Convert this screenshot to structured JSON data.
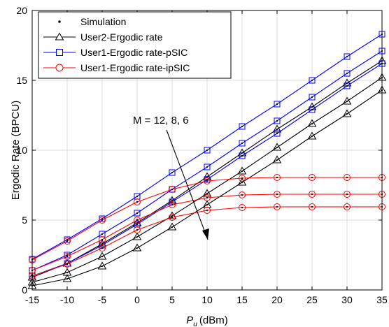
{
  "chart_data": {
    "type": "line",
    "xlabel": "P",
    "xlabel_sub": "u",
    "xlabel_unit": "(dBm)",
    "ylabel": "Ergodic Rate (BPCU)",
    "xlim": [
      -15,
      35
    ],
    "ylim": [
      0,
      20
    ],
    "x_ticks": [
      -15,
      -10,
      -5,
      0,
      5,
      10,
      15,
      20,
      25,
      30,
      35
    ],
    "y_ticks": [
      0,
      5,
      10,
      15,
      20
    ],
    "grid": true,
    "legend_position": "top-left",
    "legend": [
      {
        "label": "Simulation",
        "marker": "dot",
        "color": "#000000"
      },
      {
        "label": "User2-Ergodic rate",
        "marker": "triangle",
        "color": "#000000"
      },
      {
        "label": "User1-Ergodic rate-pSIC",
        "marker": "square",
        "color": "#0000ff"
      },
      {
        "label": "User1-Ergodic rate-ipSIC",
        "marker": "circle",
        "color": "#ff0000"
      }
    ],
    "annotation": "M = 12, 8, 6",
    "x": [
      -15,
      -10,
      -5,
      0,
      5,
      10,
      15,
      20,
      25,
      30,
      35
    ],
    "series": [
      {
        "group": "User2-Ergodic rate",
        "M": 12,
        "marker": "triangle",
        "color": "#000000",
        "values": [
          0.9,
          1.9,
          3.3,
          4.8,
          6.4,
          8.1,
          9.8,
          11.5,
          13.1,
          14.8,
          16.4
        ]
      },
      {
        "group": "User2-Ergodic rate",
        "M": 8,
        "marker": "triangle",
        "color": "#000000",
        "values": [
          0.55,
          1.25,
          2.4,
          3.8,
          5.3,
          6.9,
          8.5,
          10.2,
          11.9,
          13.5,
          15.2
        ]
      },
      {
        "group": "User2-Ergodic rate",
        "M": 6,
        "marker": "triangle",
        "color": "#000000",
        "values": [
          0.3,
          0.8,
          1.7,
          3.0,
          4.5,
          6.1,
          7.7,
          9.3,
          11.0,
          12.6,
          14.3
        ]
      },
      {
        "group": "User1-Ergodic rate-pSIC",
        "M": 12,
        "marker": "square",
        "color": "#0000ff",
        "values": [
          2.2,
          3.6,
          5.1,
          6.7,
          8.4,
          10.0,
          11.7,
          13.3,
          15.0,
          16.7,
          18.3
        ]
      },
      {
        "group": "User1-Ergodic rate-pSIC",
        "M": 8,
        "marker": "square",
        "color": "#0000ff",
        "values": [
          1.4,
          2.5,
          4.0,
          5.5,
          7.2,
          8.8,
          10.5,
          12.1,
          13.8,
          15.5,
          17.1
        ]
      },
      {
        "group": "User1-Ergodic rate-pSIC",
        "M": 6,
        "marker": "square",
        "color": "#0000ff",
        "values": [
          1.0,
          1.9,
          3.2,
          4.7,
          6.3,
          7.9,
          9.6,
          11.2,
          12.9,
          14.6,
          16.2
        ]
      },
      {
        "group": "User1-Ergodic rate-ipSIC",
        "M": 12,
        "marker": "circle",
        "color": "#ff0000",
        "values": [
          2.15,
          3.5,
          5.0,
          6.3,
          7.2,
          7.8,
          8.0,
          8.05,
          8.05,
          8.05,
          8.05
        ]
      },
      {
        "group": "User1-Ergodic rate-ipSIC",
        "M": 8,
        "marker": "circle",
        "color": "#ff0000",
        "values": [
          1.4,
          2.4,
          3.6,
          5.0,
          6.1,
          6.6,
          6.8,
          6.85,
          6.85,
          6.85,
          6.85
        ]
      },
      {
        "group": "User1-Ergodic rate-ipSIC",
        "M": 6,
        "marker": "circle",
        "color": "#ff0000",
        "values": [
          1.0,
          1.85,
          3.0,
          4.3,
          5.2,
          5.7,
          5.9,
          5.95,
          5.95,
          5.95,
          5.95
        ]
      }
    ]
  }
}
